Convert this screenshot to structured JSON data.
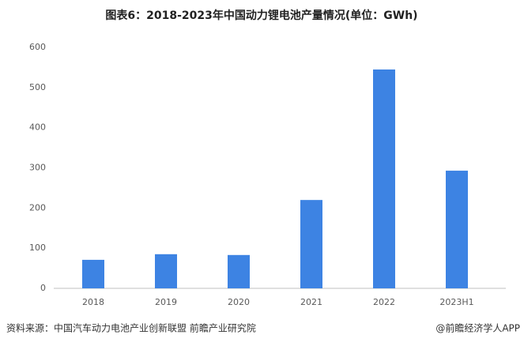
{
  "chart_data": {
    "type": "bar",
    "title": "图表6：2018-2023年中国动力锂电池产量情况(单位：GWh)",
    "categories": [
      "2018",
      "2019",
      "2020",
      "2021",
      "2022",
      "2023H1"
    ],
    "values": [
      71,
      85,
      83,
      220,
      545,
      293
    ],
    "color": "#3d83e3",
    "ylim": [
      0,
      600
    ],
    "yticks": [
      0,
      100,
      200,
      300,
      400,
      500,
      600
    ],
    "grid": false,
    "source": "资料来源：中国汽车动力电池产业创新联盟 前瞻产业研究院",
    "credit": "@前瞻经济学人APP"
  }
}
